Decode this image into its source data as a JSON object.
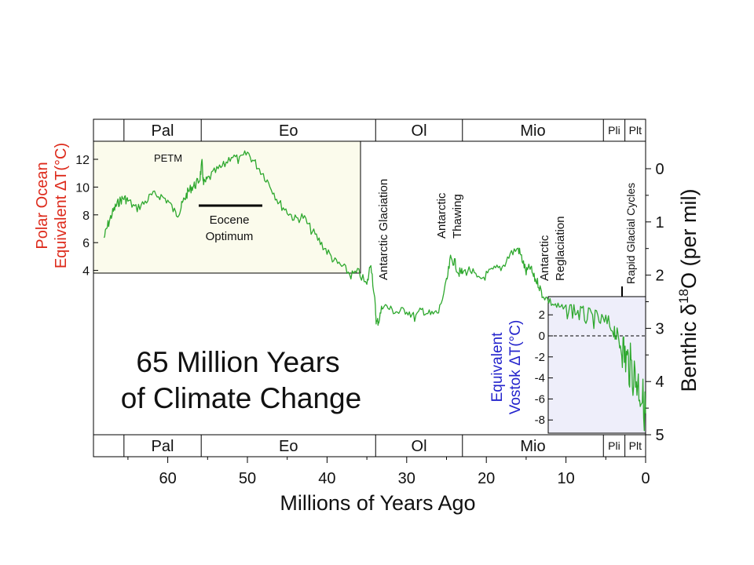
{
  "chart_data": {
    "type": "line",
    "title_line1": "65 Million Years",
    "title_line2": "of Climate Change",
    "xlabel": "Millions of Years Ago",
    "xlim": [
      67,
      0
    ],
    "x_ticks": [
      "60",
      "50",
      "40",
      "30",
      "20",
      "10",
      "0"
    ],
    "y_right": {
      "label_prefix": "Benthic δ",
      "label_sup": "18",
      "label_suffix": "O (per mil)",
      "lim": [
        -0.5,
        5
      ],
      "ticks": [
        "0",
        "1",
        "2",
        "3",
        "4",
        "5"
      ],
      "inverted": true
    },
    "y_left": {
      "label_line1": "Polar Ocean",
      "label_line2": "Equivalent  ΔT(°C)",
      "ticks": [
        "12",
        "10",
        "8",
        "6",
        "4"
      ],
      "color": "#dd2a1b"
    },
    "y_inset": {
      "label_line1": "Equivalent",
      "label_line2": "Vostok  ΔT(°C)",
      "ticks": [
        "2",
        "0",
        "-2",
        "-4",
        "-6",
        "-8"
      ],
      "color": "#2323cc"
    },
    "epochs": [
      {
        "name": "Pal",
        "start": 65.5,
        "end": 55.8
      },
      {
        "name": "Eo",
        "start": 55.8,
        "end": 33.9
      },
      {
        "name": "Ol",
        "start": 33.9,
        "end": 23.0
      },
      {
        "name": "Mio",
        "start": 23.0,
        "end": 5.3
      },
      {
        "name": "Pli",
        "start": 5.3,
        "end": 2.6
      },
      {
        "name": "Plt",
        "start": 2.6,
        "end": 0
      }
    ],
    "annotations": {
      "petm": "PETM",
      "eocene_line1": "Eocene",
      "eocene_line2": "Optimum",
      "antarctic_glaciation": "Antarctic Glaciation",
      "antarctic_thawing_1": "Antarctic",
      "antarctic_thawing_2": "Thawing",
      "antarctic_reglaciation_1": "Antarctic",
      "antarctic_reglaciation_2": "Reglaciation",
      "rapid_glacial_cycles": "Rapid Glacial Cycles"
    },
    "series": [
      {
        "color": "#2ea82e",
        "x": [
          68,
          67.5,
          67,
          66.5,
          66,
          65.5,
          65,
          64,
          63,
          62,
          61,
          60,
          59,
          58.5,
          58,
          57.5,
          57,
          56.5,
          56,
          55.7,
          55.5,
          55,
          54,
          53,
          52,
          51,
          50,
          49,
          48,
          47,
          46,
          45,
          44,
          43,
          42,
          41,
          40,
          39,
          38,
          37,
          36,
          35,
          34.5,
          34,
          33.8,
          33.5,
          33,
          32,
          31,
          30,
          29,
          28,
          27,
          26,
          25,
          24.5,
          24,
          23.5,
          23,
          22,
          21,
          20,
          19,
          18,
          17,
          16,
          15.5,
          15,
          14.5,
          14,
          13.5,
          13,
          12,
          11,
          10,
          9,
          8,
          7,
          6,
          5,
          4,
          3.5,
          3,
          2.5,
          2,
          1.5,
          1,
          0.5,
          0
        ],
        "y": [
          1.3,
          1.05,
          0.85,
          0.7,
          0.6,
          0.55,
          0.6,
          0.75,
          0.65,
          0.5,
          0.5,
          0.6,
          0.85,
          0.8,
          0.6,
          0.45,
          0.35,
          0.3,
          0.2,
          -0.1,
          0.3,
          0.2,
          0.05,
          -0.05,
          -0.25,
          -0.15,
          -0.3,
          -0.1,
          0.1,
          0.35,
          0.65,
          0.8,
          0.95,
          0.9,
          1.15,
          1.35,
          1.55,
          1.75,
          1.85,
          2.0,
          1.95,
          2.2,
          1.75,
          2.5,
          2.9,
          2.85,
          2.55,
          2.65,
          2.7,
          2.65,
          2.8,
          2.65,
          2.75,
          2.7,
          2.15,
          1.7,
          1.75,
          1.95,
          1.95,
          1.9,
          2.1,
          2.0,
          1.9,
          1.85,
          1.6,
          1.5,
          1.7,
          1.95,
          1.85,
          2.05,
          2.15,
          2.35,
          2.5,
          2.6,
          2.65,
          2.65,
          2.75,
          2.8,
          2.85,
          2.9,
          3.0,
          3.2,
          3.35,
          3.55,
          3.7,
          3.85,
          4.0,
          4.25,
          4.6
        ]
      }
    ]
  }
}
